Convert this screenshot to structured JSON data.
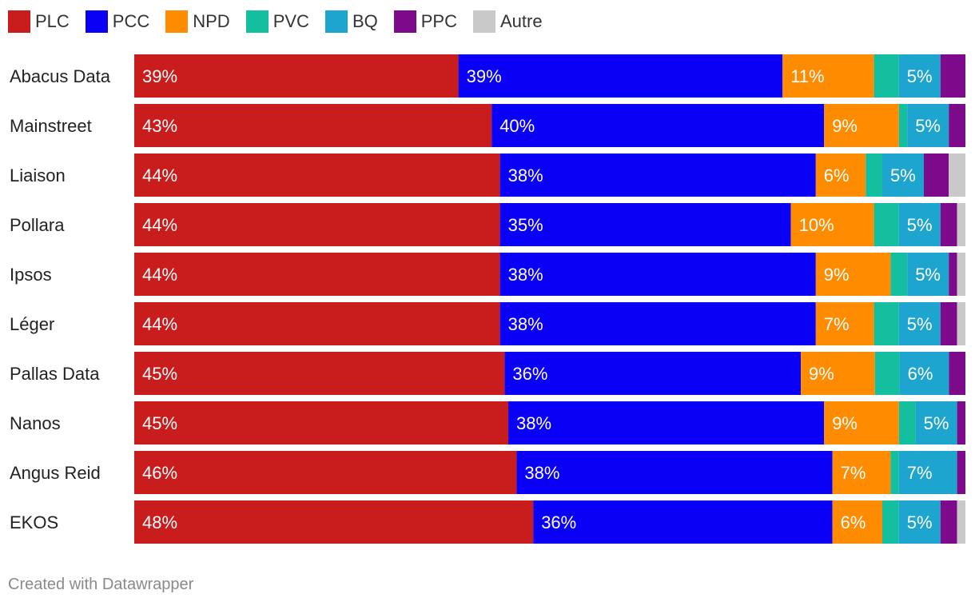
{
  "footer": "Created with Datawrapper",
  "chart_data": {
    "type": "bar",
    "orientation": "horizontal",
    "stacked": true,
    "xlim": [
      0,
      100
    ],
    "title": "",
    "xlabel": "",
    "ylabel": "",
    "legend_position": "top-left",
    "categories": [
      "Abacus Data",
      "Mainstreet",
      "Liaison",
      "Pollara",
      "Ipsos",
      "Léger",
      "Pallas Data",
      "Nanos",
      "Angus Reid",
      "EKOS"
    ],
    "series": [
      {
        "name": "PLC",
        "color": "#c91c1c",
        "values": [
          39,
          43,
          44,
          44,
          44,
          44,
          45,
          45,
          46,
          48
        ]
      },
      {
        "name": "PCC",
        "color": "#0a00f5",
        "values": [
          39,
          40,
          38,
          35,
          38,
          38,
          36,
          38,
          38,
          36
        ]
      },
      {
        "name": "NPD",
        "color": "#ff8c00",
        "values": [
          11,
          9,
          6,
          10,
          9,
          7,
          9,
          9,
          7,
          6
        ]
      },
      {
        "name": "PVC",
        "color": "#14bf9f",
        "values": [
          3,
          1,
          2,
          3,
          2,
          3,
          3,
          2,
          1,
          2
        ]
      },
      {
        "name": "BQ",
        "color": "#1ea5cf",
        "values": [
          5,
          5,
          5,
          5,
          5,
          5,
          6,
          5,
          7,
          5
        ]
      },
      {
        "name": "PPC",
        "color": "#7c0a8a",
        "values": [
          3,
          2,
          3,
          2,
          1,
          2,
          2,
          1,
          1,
          2
        ]
      },
      {
        "name": "Autre",
        "color": "#c9c9c9",
        "values": [
          0,
          0,
          2,
          1,
          1,
          1,
          0,
          0,
          0,
          1
        ]
      }
    ],
    "data_labels": [
      [
        "39%",
        "39%",
        "11%",
        "",
        "5%",
        "",
        ""
      ],
      [
        "43%",
        "40%",
        "9%",
        "",
        "5%",
        "",
        ""
      ],
      [
        "44%",
        "38%",
        "6%",
        "",
        "5%",
        "",
        ""
      ],
      [
        "44%",
        "35%",
        "10%",
        "",
        "5%",
        "",
        ""
      ],
      [
        "44%",
        "38%",
        "9%",
        "",
        "5%",
        "",
        ""
      ],
      [
        "44%",
        "38%",
        "7%",
        "",
        "5%",
        "",
        ""
      ],
      [
        "45%",
        "36%",
        "9%",
        "",
        "6%",
        "",
        ""
      ],
      [
        "45%",
        "38%",
        "9%",
        "",
        "5%",
        "",
        ""
      ],
      [
        "46%",
        "38%",
        "7%",
        "",
        "7%",
        "",
        ""
      ],
      [
        "48%",
        "36%",
        "6%",
        "",
        "5%",
        "",
        ""
      ]
    ]
  }
}
